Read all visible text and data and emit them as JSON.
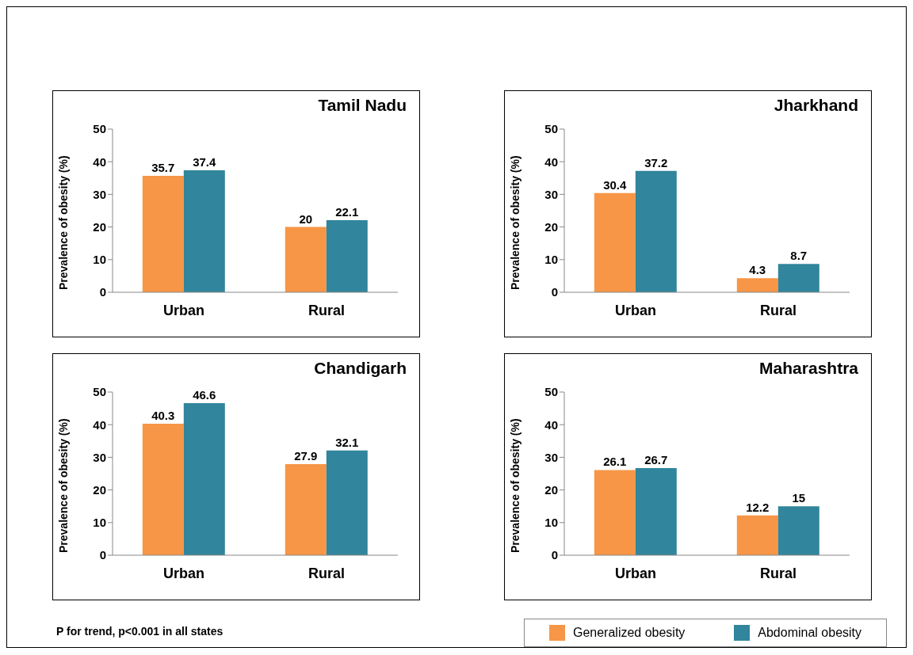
{
  "chart_data": [
    {
      "type": "bar",
      "title": "Tamil Nadu",
      "categories": [
        "Urban",
        "Rural"
      ],
      "ylabel": "Prevalence of obesity (%)",
      "ylim": [
        0,
        50
      ],
      "yticks": [
        0,
        10,
        20,
        30,
        40,
        50
      ],
      "data_labels": true,
      "series": [
        {
          "color": "#f79646",
          "values": [
            35.7,
            20
          ]
        },
        {
          "color": "#31859c",
          "values": [
            37.4,
            22.1
          ]
        }
      ]
    },
    {
      "type": "bar",
      "title": "Jharkhand",
      "categories": [
        "Urban",
        "Rural"
      ],
      "ylabel": "Prevalence of obesity (%)",
      "ylim": [
        0,
        50
      ],
      "yticks": [
        0,
        10,
        20,
        30,
        40,
        50
      ],
      "data_labels": true,
      "series": [
        {
          "color": "#f79646",
          "values": [
            30.4,
            4.3
          ]
        },
        {
          "color": "#31859c",
          "values": [
            37.2,
            8.7
          ]
        }
      ]
    },
    {
      "type": "bar",
      "title": "Chandigarh",
      "categories": [
        "Urban",
        "Rural"
      ],
      "ylabel": "Prevalence of obesity (%)",
      "ylim": [
        0,
        50
      ],
      "yticks": [
        0,
        10,
        20,
        30,
        40,
        50
      ],
      "data_labels": true,
      "annotations": [
        "P for trend, p<0.001 in all states"
      ],
      "series": [
        {
          "color": "#f79646",
          "values": [
            40.3,
            27.9
          ]
        },
        {
          "color": "#31859c",
          "values": [
            46.6,
            32.1
          ]
        }
      ]
    },
    {
      "type": "bar",
      "title": "Maharashtra",
      "categories": [
        "Urban",
        "Rural"
      ],
      "ylabel": "Prevalence of obesity (%)",
      "ylim": [
        0,
        50
      ],
      "yticks": [
        0,
        10,
        20,
        30,
        40,
        50
      ],
      "data_labels": true,
      "legend": "bottom",
      "series": [
        {
          "name": "Generalized obesity",
          "color": "#f79646",
          "values": [
            26.1,
            12.2
          ]
        },
        {
          "name": "Abdominal obesity",
          "color": "#31859c",
          "values": [
            26.7,
            15
          ]
        }
      ]
    }
  ]
}
